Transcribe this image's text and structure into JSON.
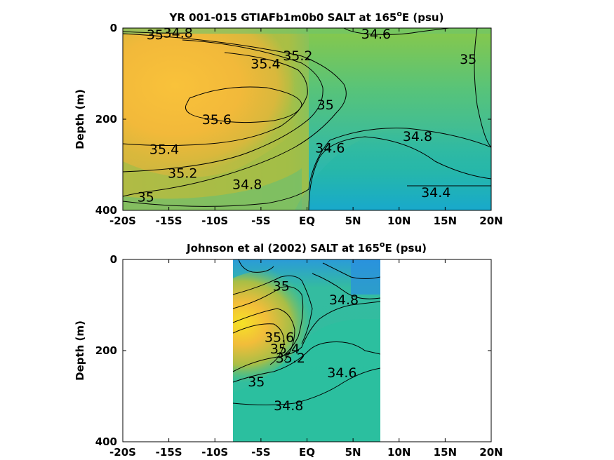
{
  "chart_data": [
    {
      "type": "contour",
      "title_main": "YR 001-015 GTIAFb1m0b0 SALT at 165",
      "title_sup": "o",
      "title_tail": "E (psu)",
      "ylabel": "Depth (m)",
      "xlim": [
        -20,
        20
      ],
      "ylim": [
        0,
        400
      ],
      "x_ticks": [
        -20,
        -15,
        -10,
        -5,
        0,
        5,
        10,
        15,
        20
      ],
      "x_tick_labels": [
        "-20S",
        "-15S",
        "-10S",
        "-5S",
        "EQ",
        "5N",
        "10N",
        "15N",
        "20N"
      ],
      "y_ticks": [
        0,
        200,
        400
      ],
      "y_tick_labels": [
        "0",
        "200",
        "400"
      ],
      "data_x_range": [
        -20,
        20
      ],
      "contour_labels": [
        {
          "text": "34.8",
          "x": -14,
          "y": 10
        },
        {
          "text": "35",
          "x": -16.5,
          "y": 14
        },
        {
          "text": "34.6",
          "x": 7.5,
          "y": 12
        },
        {
          "text": "35.2",
          "x": -1,
          "y": 60
        },
        {
          "text": "35.4",
          "x": -4.5,
          "y": 78
        },
        {
          "text": "35",
          "x": 17.5,
          "y": 68
        },
        {
          "text": "35.6",
          "x": -9.8,
          "y": 200
        },
        {
          "text": "35",
          "x": 2,
          "y": 168
        },
        {
          "text": "34.8",
          "x": 12,
          "y": 237
        },
        {
          "text": "35.4",
          "x": -15.5,
          "y": 265
        },
        {
          "text": "34.6",
          "x": 2.5,
          "y": 262
        },
        {
          "text": "35.2",
          "x": -13.5,
          "y": 318
        },
        {
          "text": "34.8",
          "x": -6.5,
          "y": 342
        },
        {
          "text": "35",
          "x": -17.5,
          "y": 370
        },
        {
          "text": "34.4",
          "x": 14,
          "y": 360
        }
      ]
    },
    {
      "type": "contour",
      "title_main": "Johnson et al (2002) SALT at 165",
      "title_sup": "o",
      "title_tail": "E (psu)",
      "ylabel": "Depth (m)",
      "xlim": [
        -20,
        20
      ],
      "ylim": [
        0,
        400
      ],
      "x_ticks": [
        -20,
        -15,
        -10,
        -5,
        0,
        5,
        10,
        15,
        20
      ],
      "x_tick_labels": [
        "-20S",
        "-15S",
        "-10S",
        "-5S",
        "EQ",
        "5N",
        "10N",
        "15N",
        "20N"
      ],
      "y_ticks": [
        0,
        200,
        400
      ],
      "y_tick_labels": [
        "0",
        "200",
        "400"
      ],
      "data_x_range": [
        -8,
        8
      ],
      "contour_labels": [
        {
          "text": "35",
          "x": -2.8,
          "y": 58
        },
        {
          "text": "34.8",
          "x": 4,
          "y": 88
        },
        {
          "text": "35.6",
          "x": -3,
          "y": 170
        },
        {
          "text": "35.4",
          "x": -2.4,
          "y": 195
        },
        {
          "text": "35.2",
          "x": -1.8,
          "y": 215
        },
        {
          "text": "34.6",
          "x": 3.8,
          "y": 248
        },
        {
          "text": "35",
          "x": -5.5,
          "y": 268
        },
        {
          "text": "34.8",
          "x": -2,
          "y": 320
        }
      ]
    }
  ]
}
